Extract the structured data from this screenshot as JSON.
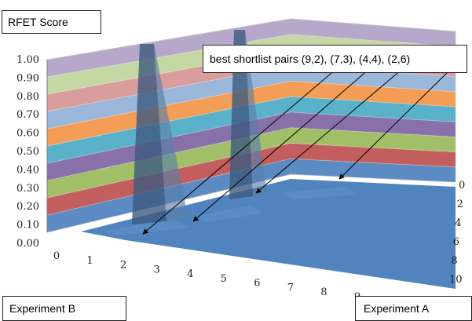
{
  "chart_data": {
    "type": "surface",
    "title": "RFET Score",
    "xlabel": "Experiment B",
    "ylabel": "Experiment A",
    "zlim": [
      0,
      1
    ],
    "z_ticks": [
      "0.00",
      "0.10",
      "0.20",
      "0.30",
      "0.40",
      "0.50",
      "0.60",
      "0.70",
      "0.80",
      "0.90",
      "1.00"
    ],
    "x_ticks": [
      "0",
      "1",
      "2",
      "3",
      "4",
      "5",
      "6",
      "7",
      "8",
      "9"
    ],
    "y_ticks": [
      "0",
      "2",
      "4",
      "6",
      "8",
      "10"
    ],
    "annotation": "best shortlist pairs (9,2), (7,3), (4,4), (2,6)",
    "band_colors": [
      "#4f81bd",
      "#c0504d",
      "#9bbb59",
      "#8064a2",
      "#4bacc6",
      "#f79646",
      "#95b3d7",
      "#d99694",
      "#c3d69b",
      "#b3a2c7"
    ],
    "ridges": [
      {
        "b": 3,
        "a": 10,
        "value": 0.98
      },
      {
        "b": 5,
        "a": 10,
        "value": 0.97
      }
    ],
    "shortlist_pairs": [
      [
        9,
        2
      ],
      [
        7,
        3
      ],
      [
        4,
        4
      ],
      [
        2,
        6
      ]
    ]
  }
}
